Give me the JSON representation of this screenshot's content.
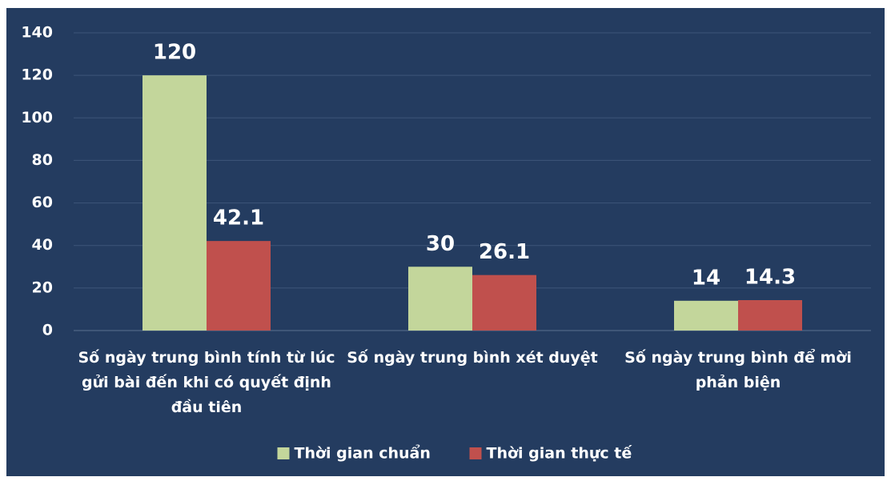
{
  "chart_data": {
    "type": "bar",
    "categories": [
      "Số ngày trung bình tính từ lúc gửi bài đến khi có quyết định đầu tiên",
      "Số ngày trung bình xét duyệt",
      "Số ngày trung bình để mời phản biện"
    ],
    "series": [
      {
        "name": "Thời gian chuẩn",
        "color": "#c3d69b",
        "values": [
          120,
          30,
          14
        ]
      },
      {
        "name": "Thời gian thực tế",
        "color": "#c0504d",
        "values": [
          42.1,
          26.1,
          14.3
        ]
      }
    ],
    "ylim": [
      0,
      140
    ],
    "yticks": [
      0,
      20,
      40,
      60,
      80,
      100,
      120,
      140
    ],
    "grid": true,
    "legend": "bottom"
  }
}
